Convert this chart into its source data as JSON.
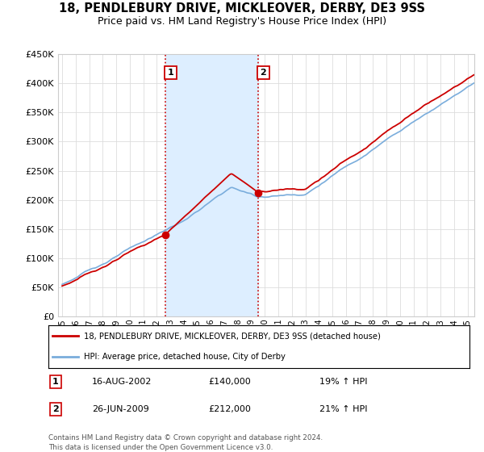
{
  "title": "18, PENDLEBURY DRIVE, MICKLEOVER, DERBY, DE3 9SS",
  "subtitle": "Price paid vs. HM Land Registry's House Price Index (HPI)",
  "ylim": [
    0,
    450000
  ],
  "yticks": [
    0,
    50000,
    100000,
    150000,
    200000,
    250000,
    300000,
    350000,
    400000,
    450000
  ],
  "sale1_year": 2002.625,
  "sale1_price": 140000,
  "sale2_year": 2009.479,
  "sale2_price": 212000,
  "sale1_text": "16-AUG-2002",
  "sale1_amount": "£140,000",
  "sale1_hpi": "19% ↑ HPI",
  "sale2_text": "26-JUN-2009",
  "sale2_amount": "£212,000",
  "sale2_hpi": "21% ↑ HPI",
  "red_color": "#cc0000",
  "blue_color": "#7aaddc",
  "shade_color": "#ddeeff",
  "legend_line1": "18, PENDLEBURY DRIVE, MICKLEOVER, DERBY, DE3 9SS (detached house)",
  "legend_line2": "HPI: Average price, detached house, City of Derby",
  "footnote1": "Contains HM Land Registry data © Crown copyright and database right 2024.",
  "footnote2": "This data is licensed under the Open Government Licence v3.0.",
  "bg": "#ffffff",
  "xstart": 1995,
  "xend": 2025
}
